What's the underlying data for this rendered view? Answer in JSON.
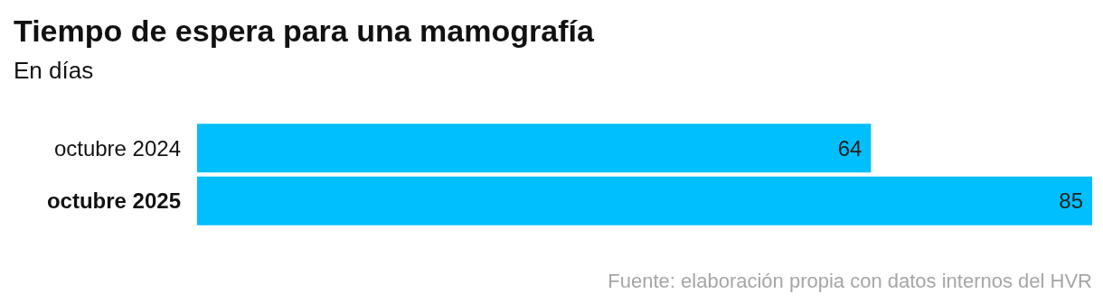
{
  "chart_data": {
    "type": "bar",
    "orientation": "horizontal",
    "title": "Tiempo de espera para una mamografía",
    "subtitle": "En días",
    "categories": [
      "octubre 2024",
      "octubre 2025"
    ],
    "values": [
      64,
      85
    ],
    "color": "#00bfff",
    "data_labels": true,
    "annotations": [
      "Fuente: elaboración propia con datos internos del HVR"
    ]
  }
}
